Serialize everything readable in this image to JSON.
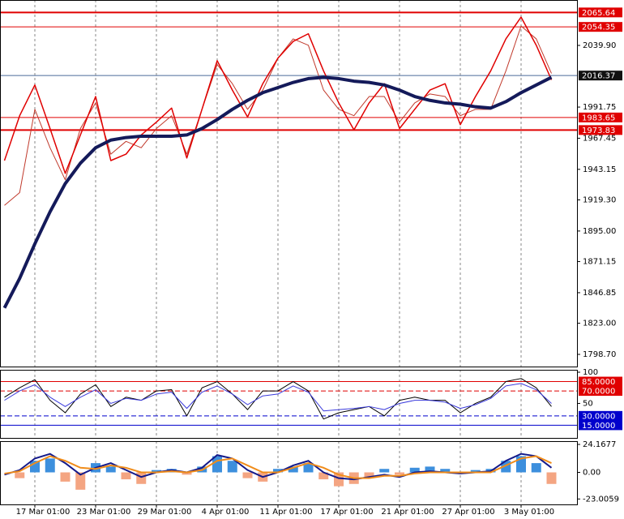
{
  "chart_data": [
    {
      "type": "line",
      "categories": [
        null,
        null,
        "17 Mar 01:00",
        null,
        null,
        null,
        "23 Mar 01:00",
        null,
        null,
        null,
        "29 Mar 01:00",
        null,
        null,
        null,
        "4 Apr 01:00",
        null,
        null,
        null,
        "11 Apr 01:00",
        null,
        null,
        null,
        "17 Apr 01:00",
        null,
        null,
        null,
        "21 Apr 01:00",
        null,
        null,
        null,
        "27 Apr 01:00",
        null,
        null,
        null,
        "3 May 01:00",
        null,
        null
      ],
      "ylim": [
        1789.2,
        2075.35
      ],
      "yticks": [
        {
          "value": 2039.9,
          "label": "2039.90"
        },
        1991.75,
        1967.45,
        1943.15,
        {
          "value": 1919.3,
          "label": "1919.30"
        },
        {
          "value": 1895.0,
          "label": "1895.00"
        },
        1871.15,
        1846.85,
        {
          "value": 1823.0,
          "label": "1823.00"
        },
        {
          "value": 1798.7,
          "label": "1798.70"
        }
      ],
      "levels": [
        {
          "value": 2065.64,
          "color": "#e00000",
          "width": 2,
          "label_color": "#e00000"
        },
        {
          "value": 2054.35,
          "color": "#e00000",
          "width": 1,
          "label_color": "#e00000"
        },
        {
          "value": 2016.37,
          "color": "#4a6a9a",
          "width": 1,
          "label_color": "#111111"
        },
        {
          "value": 1983.65,
          "color": "#e00000",
          "width": 1,
          "label_color": "#e00000"
        },
        {
          "value": 1973.83,
          "color": "#e00000",
          "width": 2,
          "label_color": "#e00000"
        }
      ],
      "series": [
        {
          "color": "#c0392b",
          "width": 1,
          "values": [
            1915,
            1925,
            1990,
            1960,
            1935,
            1975,
            1995,
            1955,
            1965,
            1960,
            1975,
            1985,
            1955,
            1990,
            2025,
            2010,
            1990,
            2005,
            2030,
            2045,
            2040,
            2005,
            1990,
            1985,
            2000,
            2000,
            1980,
            1995,
            2002,
            2000,
            1985,
            1990,
            1990,
            2020,
            2055,
            2045,
            2018
          ]
        },
        {
          "color": "#e00000",
          "width": 1.5,
          "values": [
            1950,
            1985,
            2009,
            1975,
            1940,
            1970,
            2000,
            1950,
            1955,
            1970,
            1980,
            1991,
            1952,
            1990,
            2028,
            2005,
            1984,
            2010,
            2030,
            2043,
            2049,
            2020,
            1995,
            1974,
            1995,
            2010,
            1975,
            1990,
            2005,
            2010,
            1978,
            2000,
            2020,
            2045,
            2062,
            2040,
            2013
          ]
        },
        {
          "color": "#141a5a",
          "width": 4,
          "values": [
            1835,
            1858,
            1885,
            1910,
            1932,
            1948,
            1960,
            1966,
            1968,
            1969,
            1969,
            1969,
            1970,
            1975,
            1982,
            1990,
            1997,
            2003,
            2007,
            2011,
            2014,
            2015,
            2014,
            2012,
            2011,
            2009,
            2005,
            2000,
            1997,
            1995,
            1994,
            1992,
            1991,
            1996,
            2003,
            2009,
            2015
          ]
        }
      ]
    },
    {
      "type": "line",
      "ylim": [
        -5.3,
        103.9
      ],
      "yticks": [
        100,
        50
      ],
      "levels": [
        {
          "value": 85,
          "label": "85.0000",
          "color": "#e00000",
          "dash": false,
          "label_color": "#e00000"
        },
        {
          "value": 70,
          "label": "70.0000",
          "color": "#e00000",
          "dash": true,
          "label_color": "#e00000"
        },
        {
          "value": 30,
          "label": "30.0000",
          "color": "#0000cc",
          "dash": true,
          "label_color": "#0000cc"
        },
        {
          "value": 15,
          "label": "15.0000",
          "color": "#0000cc",
          "dash": false,
          "label_color": "#0000cc"
        }
      ],
      "series": [
        {
          "color": "#000000",
          "width": 1,
          "values": [
            60,
            75,
            88,
            55,
            35,
            65,
            80,
            45,
            60,
            55,
            70,
            72,
            30,
            75,
            85,
            65,
            40,
            70,
            70,
            85,
            70,
            25,
            35,
            40,
            45,
            30,
            55,
            60,
            55,
            55,
            35,
            50,
            60,
            85,
            90,
            75,
            45
          ]
        },
        {
          "color": "#3a3adc",
          "width": 1,
          "values": [
            55,
            70,
            80,
            60,
            45,
            60,
            72,
            50,
            58,
            55,
            65,
            68,
            42,
            68,
            78,
            65,
            48,
            62,
            65,
            78,
            68,
            38,
            40,
            42,
            45,
            40,
            50,
            55,
            55,
            52,
            42,
            48,
            58,
            78,
            82,
            72,
            50
          ]
        }
      ]
    },
    {
      "type": "macd",
      "ylim": [
        -27.7,
        27.0
      ],
      "yticks": [
        24.1677,
        {
          "value": 0,
          "label": "0.00"
        },
        -23.0059
      ],
      "histogram": {
        "positive_color": "#3d8fdd",
        "negative_color": "#f4a582",
        "values": [
          0,
          -5,
          10,
          12,
          -8,
          -15,
          8,
          5,
          -6,
          -10,
          2,
          3,
          -2,
          5,
          14,
          10,
          -5,
          -8,
          3,
          5,
          8,
          -6,
          -12,
          -10,
          -5,
          3,
          -2,
          4,
          5,
          3,
          -1,
          2,
          3,
          10,
          14,
          8,
          -10
        ]
      },
      "series": [
        {
          "color": "#141a8a",
          "width": 2,
          "values": [
            -2,
            2,
            12,
            16,
            8,
            -2,
            4,
            8,
            2,
            -4,
            0,
            2,
            0,
            4,
            15,
            12,
            2,
            -4,
            0,
            6,
            10,
            0,
            -5,
            -6,
            -4,
            -2,
            -4,
            0,
            1,
            0,
            -1,
            0,
            1,
            10,
            16,
            14,
            4
          ]
        },
        {
          "color": "#f08c1a",
          "width": 2,
          "values": [
            -1,
            1,
            8,
            14,
            10,
            4,
            3,
            6,
            4,
            0,
            0,
            1,
            0,
            2,
            10,
            12,
            6,
            0,
            0,
            4,
            8,
            4,
            -2,
            -5,
            -5,
            -3,
            -3,
            -1,
            0,
            0,
            0,
            0,
            0,
            6,
            12,
            14,
            8
          ]
        }
      ]
    }
  ]
}
